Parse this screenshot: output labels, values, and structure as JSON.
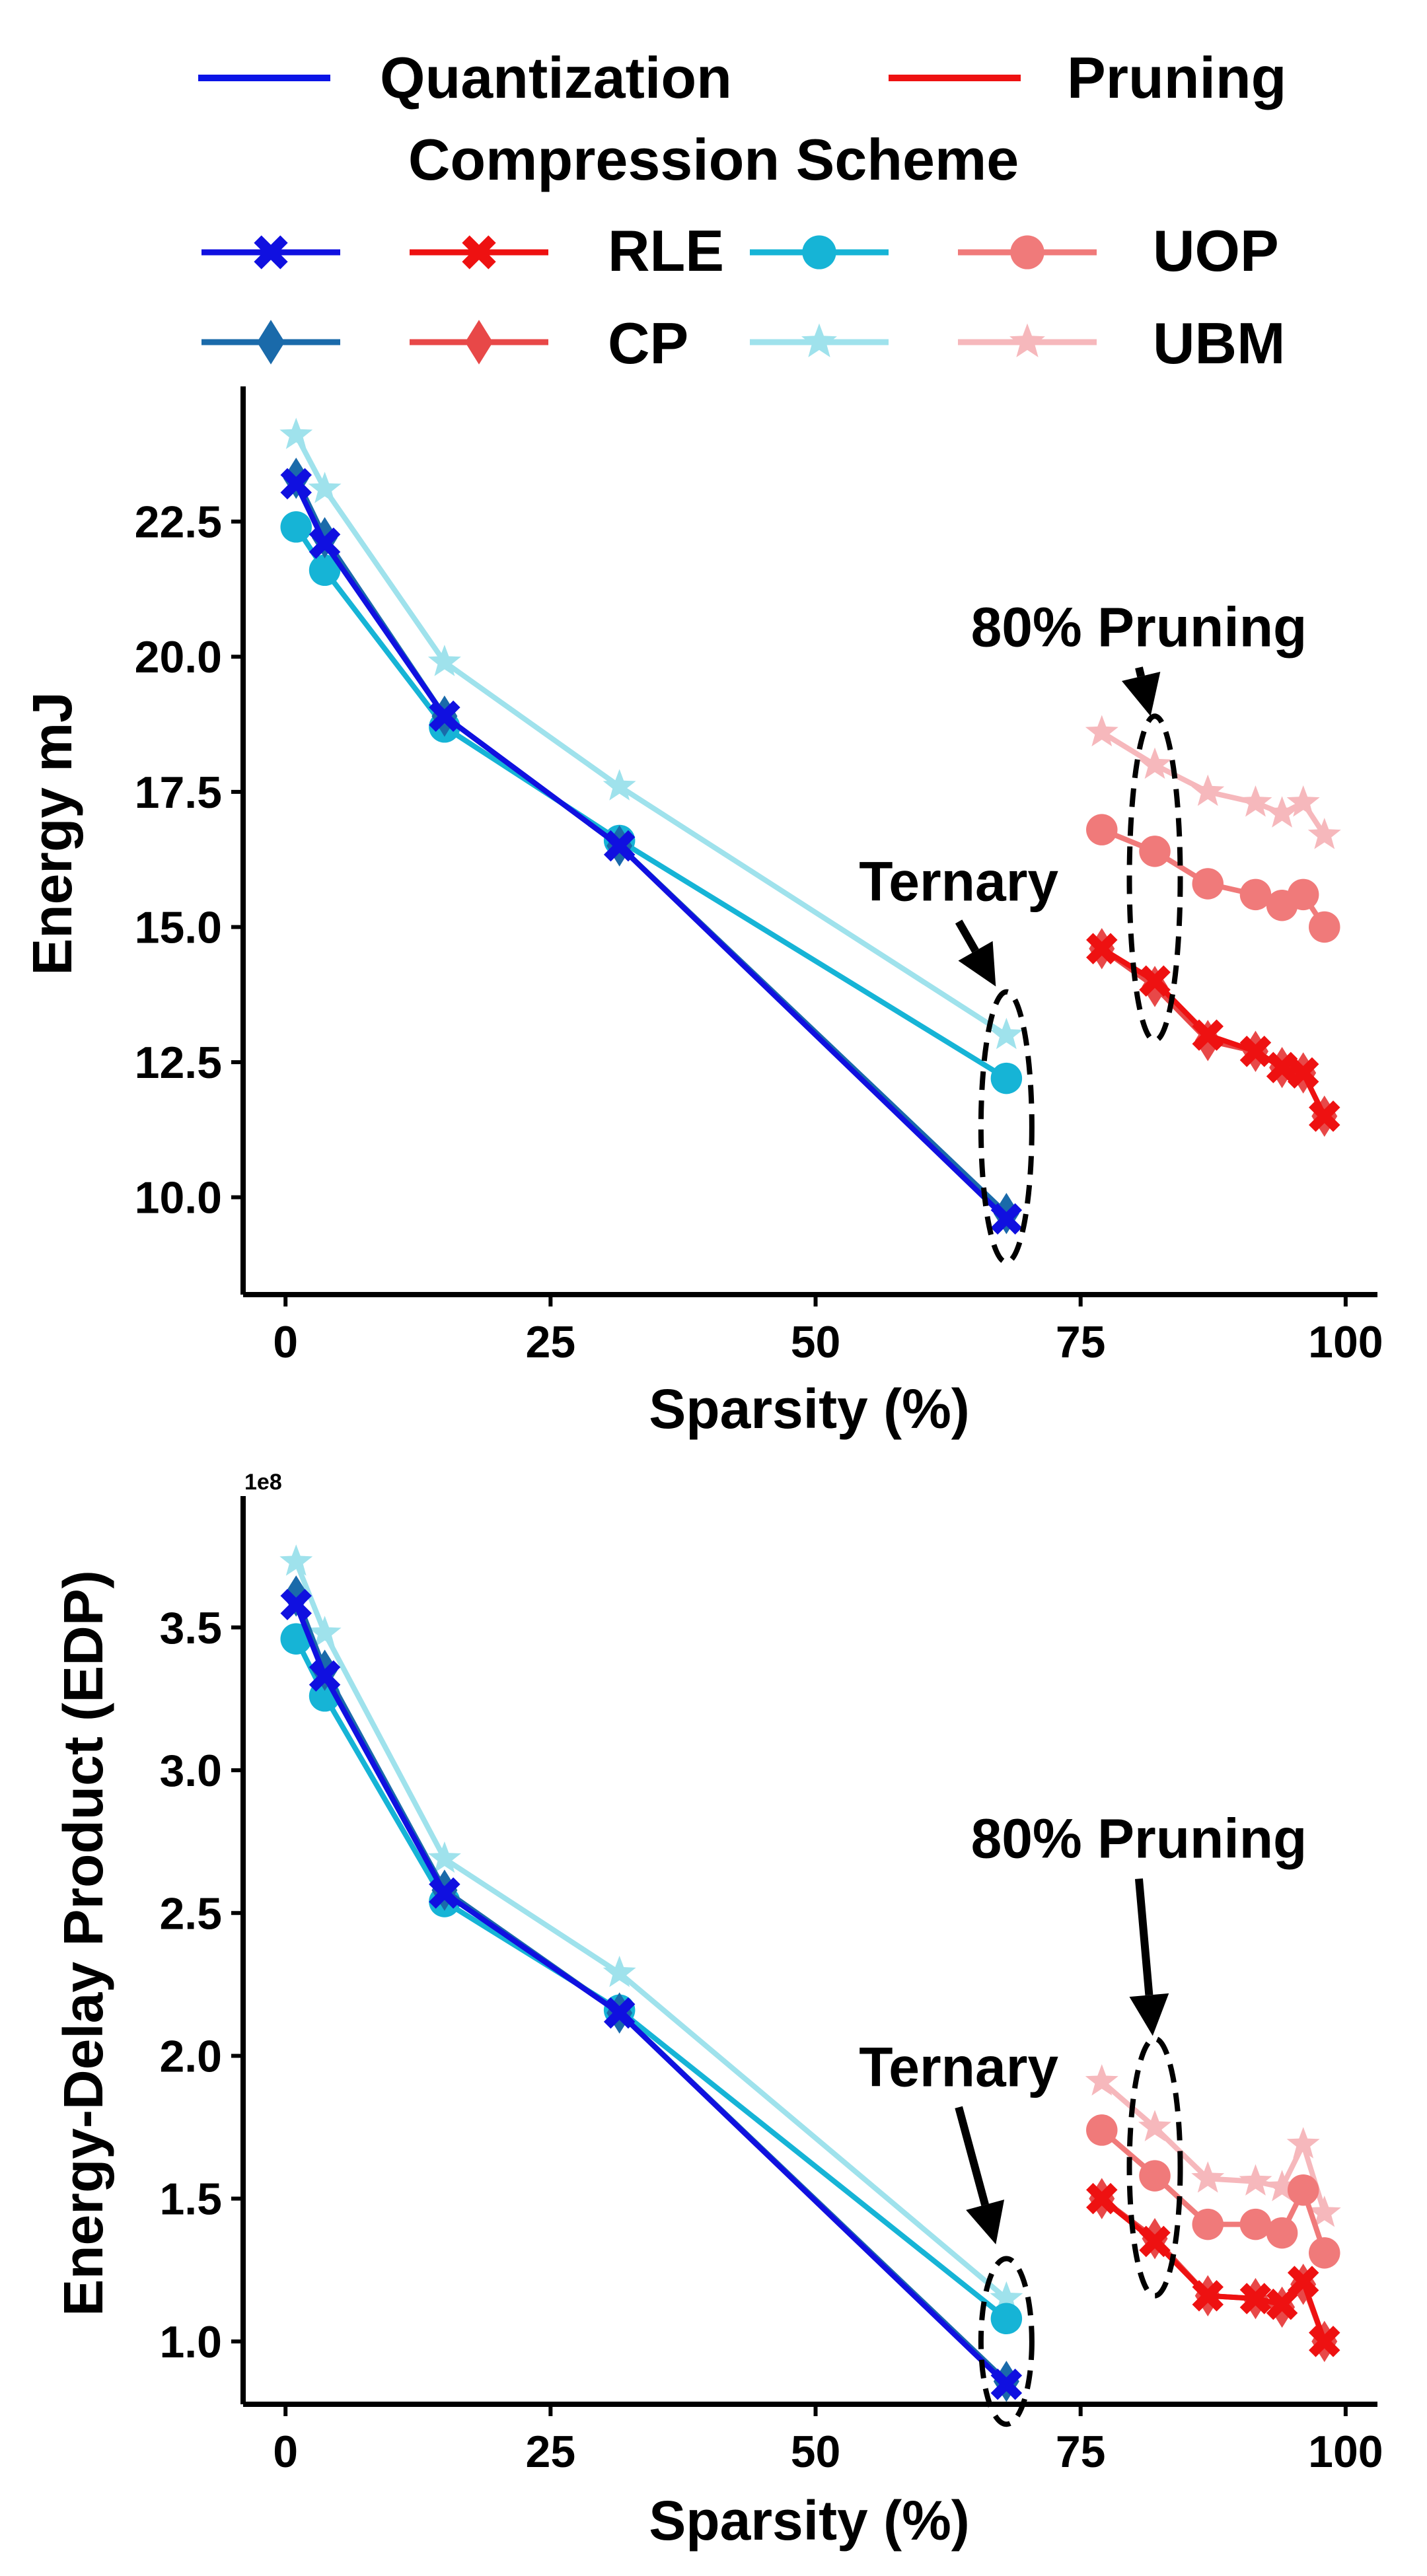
{
  "legend": {
    "group_title": "Compression Scheme",
    "families": [
      {
        "label": "Quantization",
        "color": "#0a14e6"
      },
      {
        "label": "Pruning",
        "color": "#ee1111"
      }
    ],
    "schemes": [
      {
        "label": "RLE",
        "quant_color": "#1010e0",
        "prune_color": "#ee1111",
        "quant_marker": "x",
        "prune_marker": "x"
      },
      {
        "label": "CP",
        "quant_color": "#1a6aaa",
        "prune_color": "#e84848",
        "quant_marker": "diamond",
        "prune_marker": "diamond"
      },
      {
        "label": "UOP",
        "quant_color": "#16b4d6",
        "prune_color": "#f07a7a",
        "quant_marker": "circle",
        "prune_marker": "circle"
      },
      {
        "label": "UBM",
        "quant_color": "#9fe2ec",
        "prune_color": "#f6b8bc",
        "quant_marker": "star",
        "prune_marker": "star"
      }
    ]
  },
  "chart_data": [
    {
      "type": "line",
      "panel": "top",
      "xlabel": "Sparsity (%)",
      "ylabel": "Energy mJ",
      "xlim": [
        -4,
        103
      ],
      "ylim": [
        8.2,
        25.0
      ],
      "xticks": [
        0,
        25,
        50,
        75,
        100
      ],
      "xtick_labels": [
        "0",
        "25",
        "50",
        "75",
        "100"
      ],
      "yticks": [
        10.0,
        12.5,
        15.0,
        17.5,
        20.0,
        22.5
      ],
      "ytick_labels": [
        "10.0",
        "12.5",
        "15.0",
        "17.5",
        "20.0",
        "22.5"
      ],
      "exponent_label": "",
      "series": [
        {
          "name": "Quantization RLE",
          "scheme": "RLE",
          "family": "Quantization",
          "x": [
            1,
            3.7,
            15,
            31.5,
            68
          ],
          "y": [
            23.2,
            22.1,
            18.9,
            16.5,
            9.6
          ]
        },
        {
          "name": "Quantization CP",
          "scheme": "CP",
          "family": "Quantization",
          "x": [
            1,
            3.7,
            15,
            31.5,
            68
          ],
          "y": [
            23.3,
            22.2,
            18.9,
            16.5,
            9.7
          ]
        },
        {
          "name": "Quantization UOP",
          "scheme": "UOP",
          "family": "Quantization",
          "x": [
            1,
            3.7,
            15,
            31.5,
            68
          ],
          "y": [
            22.4,
            21.6,
            18.7,
            16.6,
            12.2
          ]
        },
        {
          "name": "Quantization UBM",
          "scheme": "UBM",
          "family": "Quantization",
          "x": [
            1,
            3.7,
            15,
            31.5,
            68
          ],
          "y": [
            24.1,
            23.1,
            19.9,
            17.6,
            13.0
          ]
        },
        {
          "name": "Pruning RLE",
          "scheme": "RLE",
          "family": "Pruning",
          "x": [
            77,
            82,
            87,
            91.5,
            94,
            96,
            98
          ],
          "y": [
            14.6,
            14.0,
            13.0,
            12.7,
            12.4,
            12.3,
            11.5
          ]
        },
        {
          "name": "Pruning CP",
          "scheme": "CP",
          "family": "Pruning",
          "x": [
            77,
            82,
            87,
            91.5,
            94,
            96,
            98
          ],
          "y": [
            14.6,
            13.9,
            12.9,
            12.7,
            12.4,
            12.3,
            11.5
          ]
        },
        {
          "name": "Pruning UOP",
          "scheme": "UOP",
          "family": "Pruning",
          "x": [
            77,
            82,
            87,
            91.5,
            94,
            96,
            98
          ],
          "y": [
            16.8,
            16.4,
            15.8,
            15.6,
            15.4,
            15.6,
            15.0
          ]
        },
        {
          "name": "Pruning UBM",
          "scheme": "UBM",
          "family": "Pruning",
          "x": [
            77,
            82,
            87,
            91.5,
            94,
            96,
            98
          ],
          "y": [
            18.6,
            18.0,
            17.5,
            17.3,
            17.1,
            17.3,
            16.7
          ]
        }
      ],
      "annotations": [
        {
          "text": "80% Pruning",
          "target_x": 82,
          "ellipse": {
            "cx": 82,
            "cy": 15.9,
            "rx": 2.4,
            "ry": 3.0
          },
          "arrow_from": [
            80.5,
            19.8
          ],
          "arrow_to": [
            81.6,
            18.9
          ]
        },
        {
          "text": "Ternary",
          "target_x": 68,
          "ellipse": {
            "cx": 68,
            "cy": 11.3,
            "rx": 2.4,
            "ry": 2.5
          },
          "arrow_from": [
            63.5,
            15.1
          ],
          "arrow_to": [
            67,
            13.9
          ]
        }
      ]
    },
    {
      "type": "line",
      "panel": "bottom",
      "xlabel": "Sparsity (%)",
      "ylabel": "Energy-Delay Product (EDP)",
      "xlim": [
        -4,
        103
      ],
      "ylim": [
        0.78,
        3.96
      ],
      "xticks": [
        0,
        25,
        50,
        75,
        100
      ],
      "xtick_labels": [
        "0",
        "25",
        "50",
        "75",
        "100"
      ],
      "yticks": [
        1.0,
        1.5,
        2.0,
        2.5,
        3.0,
        3.5
      ],
      "ytick_labels": [
        "1.0",
        "1.5",
        "2.0",
        "2.5",
        "3.0",
        "3.5"
      ],
      "exponent_label": "1e8",
      "series": [
        {
          "name": "Quantization RLE",
          "scheme": "RLE",
          "family": "Quantization",
          "x": [
            1,
            3.7,
            15,
            31.5,
            68
          ],
          "y": [
            3.58,
            3.33,
            2.57,
            2.15,
            0.85
          ]
        },
        {
          "name": "Quantization CP",
          "scheme": "CP",
          "family": "Quantization",
          "x": [
            1,
            3.7,
            15,
            31.5,
            68
          ],
          "y": [
            3.61,
            3.35,
            2.58,
            2.15,
            0.86
          ]
        },
        {
          "name": "Quantization UOP",
          "scheme": "UOP",
          "family": "Quantization",
          "x": [
            1,
            3.7,
            15,
            31.5,
            68
          ],
          "y": [
            3.46,
            3.26,
            2.54,
            2.16,
            1.08
          ]
        },
        {
          "name": "Quantization UBM",
          "scheme": "UBM",
          "family": "Quantization",
          "x": [
            1,
            3.7,
            15,
            31.5,
            68
          ],
          "y": [
            3.73,
            3.48,
            2.69,
            2.29,
            1.15
          ]
        },
        {
          "name": "Pruning RLE",
          "scheme": "RLE",
          "family": "Pruning",
          "x": [
            77,
            82,
            87,
            91.5,
            94,
            96,
            98
          ],
          "y": [
            1.5,
            1.35,
            1.16,
            1.15,
            1.13,
            1.21,
            1.0
          ]
        },
        {
          "name": "Pruning CP",
          "scheme": "CP",
          "family": "Pruning",
          "x": [
            77,
            82,
            87,
            91.5,
            94,
            96,
            98
          ],
          "y": [
            1.5,
            1.36,
            1.16,
            1.15,
            1.12,
            1.2,
            1.0
          ]
        },
        {
          "name": "Pruning UOP",
          "scheme": "UOP",
          "family": "Pruning",
          "x": [
            77,
            82,
            87,
            91.5,
            94,
            96,
            98
          ],
          "y": [
            1.74,
            1.58,
            1.41,
            1.41,
            1.38,
            1.53,
            1.31
          ]
        },
        {
          "name": "Pruning UBM",
          "scheme": "UBM",
          "family": "Pruning",
          "x": [
            77,
            82,
            87,
            91.5,
            94,
            96,
            98
          ],
          "y": [
            1.91,
            1.75,
            1.57,
            1.56,
            1.54,
            1.69,
            1.45
          ]
        }
      ],
      "annotations": [
        {
          "text": "80% Pruning",
          "target_x": 82,
          "ellipse": {
            "cx": 82,
            "cy": 1.61,
            "rx": 2.4,
            "ry": 0.45
          },
          "arrow_from": [
            80.5,
            2.62
          ],
          "arrow_to": [
            81.8,
            2.07
          ]
        },
        {
          "text": "Ternary",
          "target_x": 68,
          "ellipse": {
            "cx": 68,
            "cy": 1.0,
            "rx": 2.4,
            "ry": 0.29
          },
          "arrow_from": [
            63.5,
            1.82
          ],
          "arrow_to": [
            67,
            1.34
          ]
        }
      ]
    }
  ]
}
